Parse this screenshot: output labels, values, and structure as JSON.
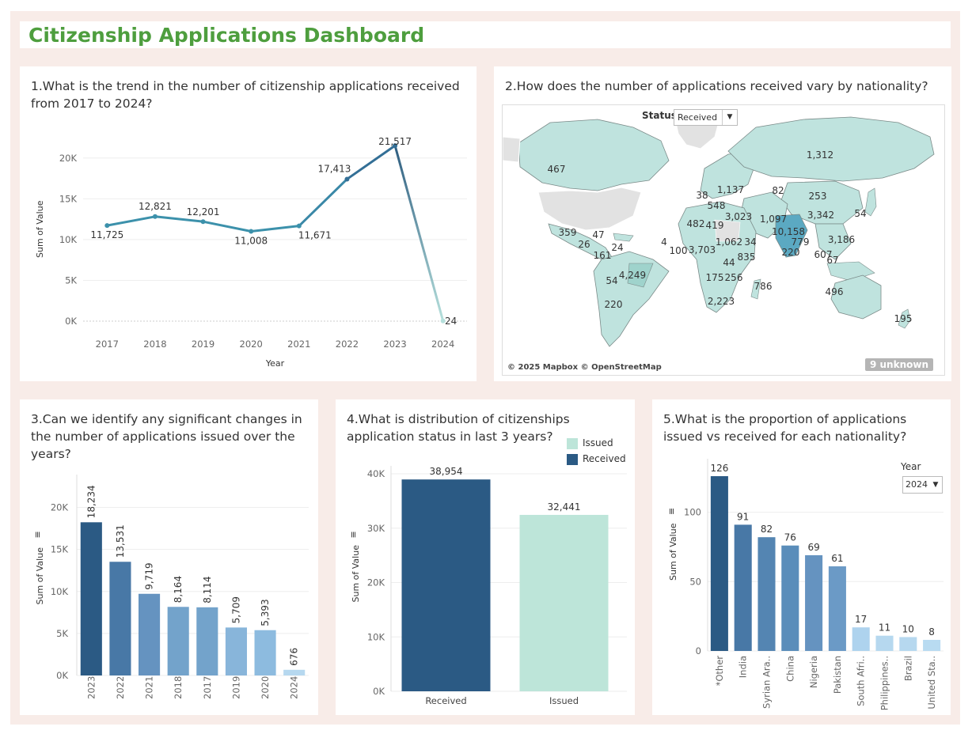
{
  "dashboard_title": "Citizenship Applications Dashboard",
  "colors": {
    "title_green": "#4e9e3e",
    "frame_bg": "#f8ece8"
  },
  "panel1": {
    "question": [
      "1.What is the trend in the number of citizenship applications received",
      "from 2017 to 2024?"
    ],
    "chart_data": {
      "type": "line",
      "x": [
        "2017",
        "2018",
        "2019",
        "2020",
        "2021",
        "2022",
        "2023",
        "2024"
      ],
      "values": [
        11725,
        12821,
        12201,
        11008,
        11671,
        17413,
        21517,
        24
      ],
      "data_labels": [
        "11,725",
        "12,821",
        "12,201",
        "11,008",
        "11,671",
        "17,413",
        "21,517",
        "24"
      ],
      "xlabel": "Year",
      "ylabel": "Sum of Value",
      "yticks": [
        "0K",
        "5K",
        "10K",
        "15K",
        "20K"
      ],
      "ylim": [
        0,
        22500
      ]
    }
  },
  "panel2": {
    "question": "2.How does the number of applications received vary by nationality?",
    "status_label": "Status",
    "status_value": "Received",
    "credit": "© 2025 Mapbox © OpenStreetMap",
    "unknown": "9 unknown",
    "map_labels": [
      {
        "t": "1,312"
      },
      {
        "t": "467"
      },
      {
        "t": "38"
      },
      {
        "t": "1,137"
      },
      {
        "t": "548"
      },
      {
        "t": "82"
      },
      {
        "t": "253"
      },
      {
        "t": "3,023"
      },
      {
        "t": "1,097"
      },
      {
        "t": "3,342"
      },
      {
        "t": "54"
      },
      {
        "t": "482"
      },
      {
        "t": "419"
      },
      {
        "t": "10,158"
      },
      {
        "t": "359"
      },
      {
        "t": "47"
      },
      {
        "t": "26"
      },
      {
        "t": "4"
      },
      {
        "t": "100"
      },
      {
        "t": "3,703"
      },
      {
        "t": "1,062"
      },
      {
        "t": "34"
      },
      {
        "t": "779"
      },
      {
        "t": "3,186"
      },
      {
        "t": "24"
      },
      {
        "t": "161"
      },
      {
        "t": "835"
      },
      {
        "t": "220"
      },
      {
        "t": "607"
      },
      {
        "t": "67"
      },
      {
        "t": "44"
      },
      {
        "t": "4,249"
      },
      {
        "t": "54"
      },
      {
        "t": "175"
      },
      {
        "t": "256"
      },
      {
        "t": "786"
      },
      {
        "t": "496"
      },
      {
        "t": "220"
      },
      {
        "t": "2,223"
      },
      {
        "t": "195"
      }
    ]
  },
  "panel3": {
    "question": [
      "3.Can we identify any significant changes in",
      "the number of applications issued over the",
      "years?"
    ],
    "chart_data": {
      "type": "bar",
      "categories": [
        "2023",
        "2022",
        "2021",
        "2018",
        "2017",
        "2019",
        "2020",
        "2024"
      ],
      "values": [
        18234,
        13531,
        9719,
        8164,
        8114,
        5709,
        5393,
        676
      ],
      "data_labels": [
        "18,234",
        "13,531",
        "9,719",
        "8,164",
        "8,114",
        "5,709",
        "5,393",
        "676"
      ],
      "ylabel": "Sum of Value",
      "yticks": [
        "0K",
        "5K",
        "10K",
        "15K",
        "20K"
      ],
      "ylim": [
        0,
        22500
      ],
      "colors": [
        "#2b5a84",
        "#4878a6",
        "#6593c0",
        "#73a3cb",
        "#73a3cb",
        "#88b5da",
        "#8dbbdf",
        "#b6d8ef"
      ]
    }
  },
  "panel4": {
    "question": [
      "4.What is distribution of citizenships",
      "application status in last 3 years?"
    ],
    "legend": [
      {
        "name": "Issued",
        "color": "#bde5d9"
      },
      {
        "name": "Received",
        "color": "#2b5a84"
      }
    ],
    "chart_data": {
      "type": "bar",
      "categories": [
        "Received",
        "Issued"
      ],
      "values": [
        38954,
        32441
      ],
      "data_labels": [
        "38,954",
        "32,441"
      ],
      "ylabel": "Sum of Value",
      "yticks": [
        "0K",
        "10K",
        "20K",
        "30K",
        "40K"
      ],
      "ylim": [
        0,
        40000
      ],
      "colors": [
        "#2b5a84",
        "#bde5d9"
      ]
    }
  },
  "panel5": {
    "question": [
      "5.What is the proportion of applications",
      "issued vs received for each nationality?"
    ],
    "year_label": "Year",
    "year_value": "2024",
    "chart_data": {
      "type": "bar",
      "categories": [
        "*Other",
        "India",
        "Syrian Ara..",
        "China",
        "Nigeria",
        "Pakistan",
        "South Afri..",
        "Philippines..",
        "Brazil",
        "United Sta.."
      ],
      "values": [
        126,
        91,
        82,
        76,
        69,
        61,
        17,
        11,
        10,
        8
      ],
      "data_labels": [
        "126",
        "91",
        "82",
        "76",
        "69",
        "61",
        "17",
        "11",
        "10",
        "8"
      ],
      "ylabel": "Sum of Value",
      "yticks": [
        "0",
        "50",
        "100"
      ],
      "ylim": [
        0,
        130
      ],
      "colors": [
        "#2b5a84",
        "#4878a6",
        "#5485b2",
        "#5a8dba",
        "#6593c0",
        "#6b9ac6",
        "#aed3ee",
        "#b6d8ef",
        "#b6d8ef",
        "#b8dbf1"
      ]
    }
  }
}
